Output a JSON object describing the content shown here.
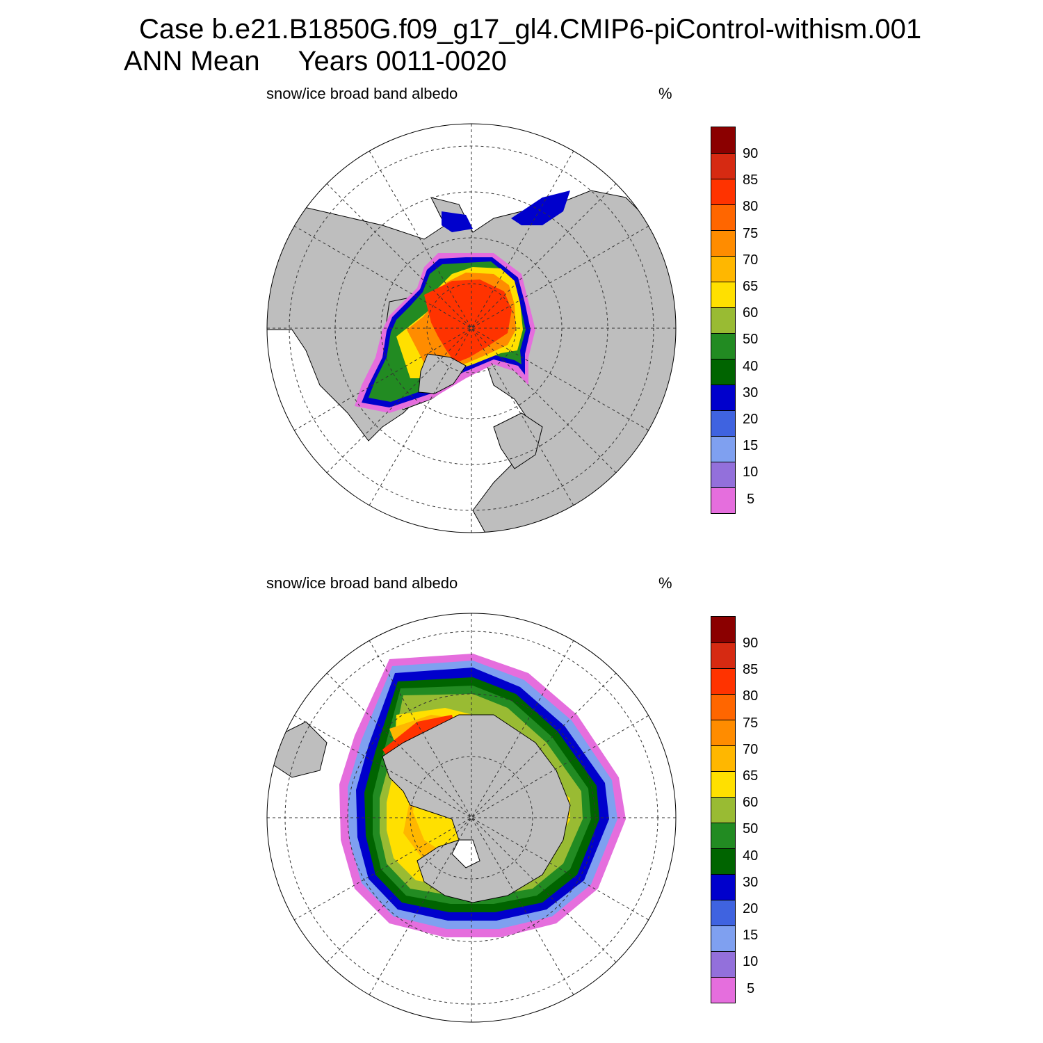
{
  "figure": {
    "title_line1": "Case b.e21.B1850G.f09_g17_gl4.CMIP6-piControl-withism.001",
    "title_line2": "ANN Mean     Years 0011-0020"
  },
  "panels": [
    {
      "id": "north",
      "variable_label": "snow/ice broad band albedo",
      "units": "%"
    },
    {
      "id": "south",
      "variable_label": "snow/ice broad band albedo",
      "units": "%"
    }
  ],
  "colorbar": {
    "labels": [
      "90",
      "85",
      "80",
      "75",
      "70",
      "65",
      "60",
      "50",
      "40",
      "30",
      "20",
      "15",
      "10",
      "5"
    ],
    "colors": [
      "#8B0000",
      "#D62A12",
      "#FF3300",
      "#FF6600",
      "#FF8C00",
      "#FFB700",
      "#FFE000",
      "#99BB33",
      "#228B22",
      "#006400",
      "#0000CC",
      "#3F63E0",
      "#7FA0F0",
      "#9370DB",
      "#E56EDD"
    ]
  },
  "map_colors": {
    "land": "#BEBEBE",
    "ocean": "#FFFFFF",
    "coast": "#000000"
  }
}
